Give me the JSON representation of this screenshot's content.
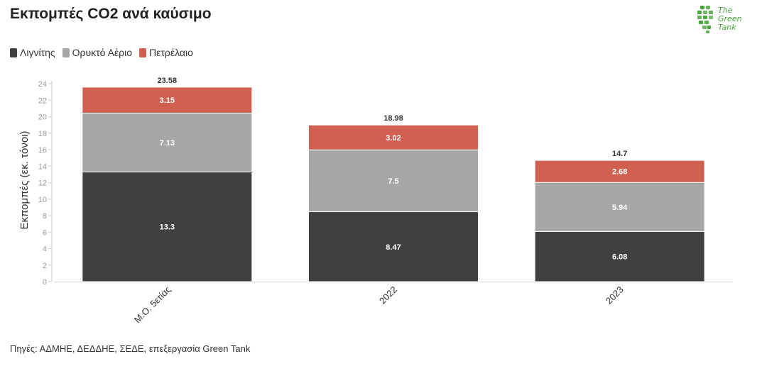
{
  "header": {
    "title": "Εκπομπές CO2 ανά καύσιμο"
  },
  "logo": {
    "line1": "The",
    "line2": "Green",
    "line3": "Tank",
    "color": "#4aa63c"
  },
  "source_note": "Πηγές: ΑΔΜΗΕ, ΔΕΔΔΗΕ, ΣΕΔΕ, επεξεργασία Green Tank",
  "chart_data": {
    "type": "bar",
    "stacked": true,
    "title": "Εκπομπές CO2 ανά καύσιμο",
    "ylabel": "Εκπομπές (εκ. τόνοι)",
    "xlabel": "",
    "categories": [
      "Μ.Ο. 5ετίας",
      "2022",
      "2023"
    ],
    "series": [
      {
        "name": "Λιγνίτης",
        "color": "#404040",
        "values": [
          13.3,
          8.47,
          6.08
        ]
      },
      {
        "name": "Ορυκτό Αέριο",
        "color": "#a6a6a6",
        "values": [
          7.13,
          7.5,
          5.94
        ]
      },
      {
        "name": "Πετρέλαιο",
        "color": "#d06050",
        "values": [
          3.15,
          3.02,
          2.68
        ]
      }
    ],
    "totals": [
      "23.58",
      "18.98",
      "14.7"
    ],
    "ylim": [
      0,
      24
    ],
    "yticks": [
      0,
      2,
      4,
      6,
      8,
      10,
      12,
      14,
      16,
      18,
      20,
      22,
      24
    ],
    "legend_position": "top-left",
    "grid": false
  }
}
